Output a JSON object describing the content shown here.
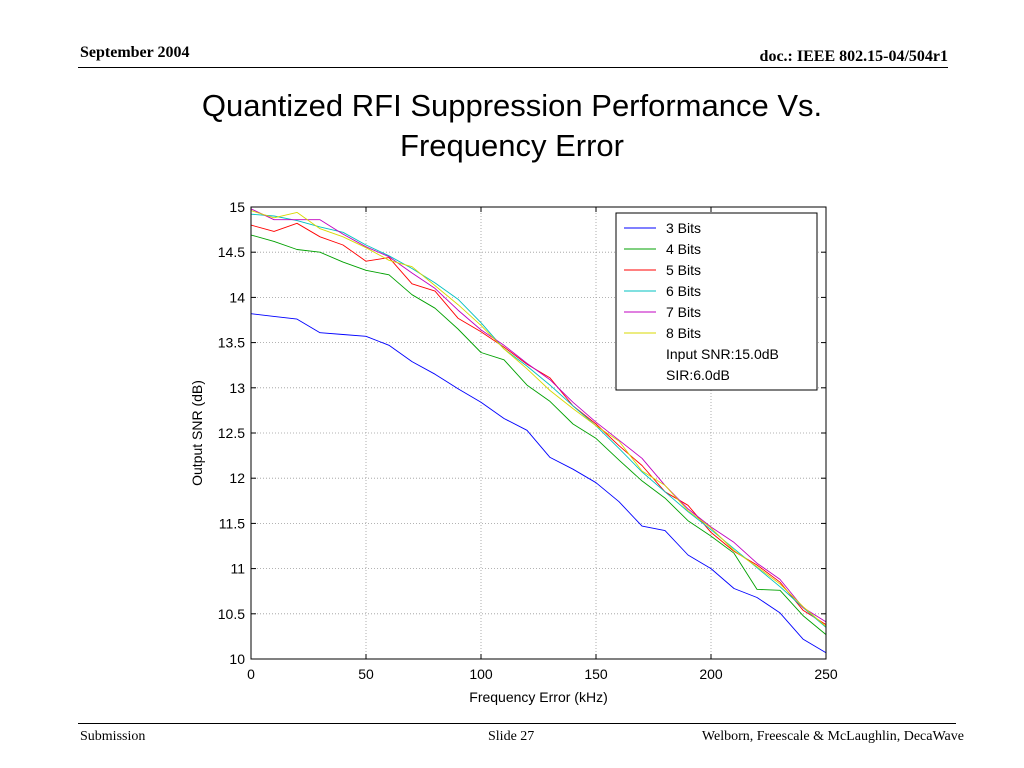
{
  "header": {
    "date": "September 2004",
    "doc": "doc.: IEEE 802.15-04/504r1"
  },
  "slide": {
    "title_line1": "Quantized RFI Suppression Performance Vs.",
    "title_line2": "Frequency Error"
  },
  "footer": {
    "left": "Submission",
    "center": "Slide 27",
    "right": "Welborn, Freescale & McLaughlin, DecaWave"
  },
  "chart_data": {
    "type": "line",
    "title": "",
    "xlabel": "Frequency Error (kHz)",
    "ylabel": "Output SNR (dB)",
    "xlim": [
      0,
      250
    ],
    "ylim": [
      10,
      15
    ],
    "xticks": [
      0,
      50,
      100,
      150,
      200,
      250
    ],
    "yticks": [
      10,
      10.5,
      11,
      11.5,
      12,
      12.5,
      13,
      13.5,
      14,
      14.5,
      15
    ],
    "xtick_labels": [
      "0",
      "50",
      "100",
      "150",
      "200",
      "250"
    ],
    "ytick_labels": [
      "10",
      "10.5",
      "11",
      "11.5",
      "12",
      "12.5",
      "13",
      "13.5",
      "14",
      "14.5",
      "15"
    ],
    "grid": true,
    "legend_position": "top-right",
    "legend_notes": [
      "Input SNR:15.0dB",
      "SIR:6.0dB"
    ],
    "x": [
      0,
      10,
      20,
      30,
      40,
      50,
      60,
      70,
      80,
      90,
      100,
      110,
      120,
      130,
      140,
      150,
      160,
      170,
      180,
      190,
      200,
      210,
      220,
      230,
      240,
      250
    ],
    "series": [
      {
        "name": "3 Bits",
        "color": "#0000ff",
        "values": [
          13.82,
          13.79,
          13.76,
          13.61,
          13.59,
          13.57,
          13.47,
          13.29,
          13.15,
          12.99,
          12.84,
          12.66,
          12.53,
          12.23,
          12.1,
          11.95,
          11.74,
          11.47,
          11.42,
          11.15,
          11.0,
          10.78,
          10.68,
          10.51,
          10.22,
          10.07
        ]
      },
      {
        "name": "4 Bits",
        "color": "#00a000",
        "values": [
          14.69,
          14.62,
          14.53,
          14.5,
          14.39,
          14.3,
          14.25,
          14.03,
          13.88,
          13.65,
          13.39,
          13.31,
          13.03,
          12.85,
          12.6,
          12.44,
          12.2,
          11.97,
          11.78,
          11.53,
          11.36,
          11.17,
          10.77,
          10.76,
          10.48,
          10.27
        ]
      },
      {
        "name": "5 Bits",
        "color": "#ff0000",
        "values": [
          14.8,
          14.73,
          14.82,
          14.67,
          14.58,
          14.4,
          14.44,
          14.15,
          14.07,
          13.77,
          13.62,
          13.45,
          13.26,
          13.11,
          12.8,
          12.6,
          12.36,
          12.14,
          11.85,
          11.7,
          11.4,
          11.19,
          11.04,
          10.85,
          10.54,
          10.38
        ]
      },
      {
        "name": "6 Bits",
        "color": "#00c0c0",
        "values": [
          14.92,
          14.9,
          14.85,
          14.78,
          14.72,
          14.58,
          14.46,
          14.32,
          14.16,
          13.98,
          13.72,
          13.43,
          13.24,
          13.03,
          12.8,
          12.58,
          12.33,
          12.07,
          11.85,
          11.63,
          11.43,
          11.22,
          11.01,
          10.8,
          10.57,
          10.35
        ]
      },
      {
        "name": "7 Bits",
        "color": "#c000c0",
        "values": [
          14.98,
          14.86,
          14.86,
          14.86,
          14.7,
          14.56,
          14.45,
          14.27,
          14.1,
          13.86,
          13.64,
          13.47,
          13.27,
          13.09,
          12.84,
          12.62,
          12.42,
          12.22,
          11.92,
          11.66,
          11.46,
          11.29,
          11.06,
          10.88,
          10.57,
          10.41
        ]
      },
      {
        "name": "8 Bits",
        "color": "#d8d800",
        "values": [
          14.96,
          14.88,
          14.94,
          14.76,
          14.67,
          14.55,
          14.41,
          14.34,
          14.13,
          13.92,
          13.69,
          13.43,
          13.21,
          12.97,
          12.77,
          12.58,
          12.41,
          12.08,
          11.92,
          11.64,
          11.45,
          11.2,
          11.02,
          10.83,
          10.58,
          10.36
        ]
      }
    ]
  }
}
